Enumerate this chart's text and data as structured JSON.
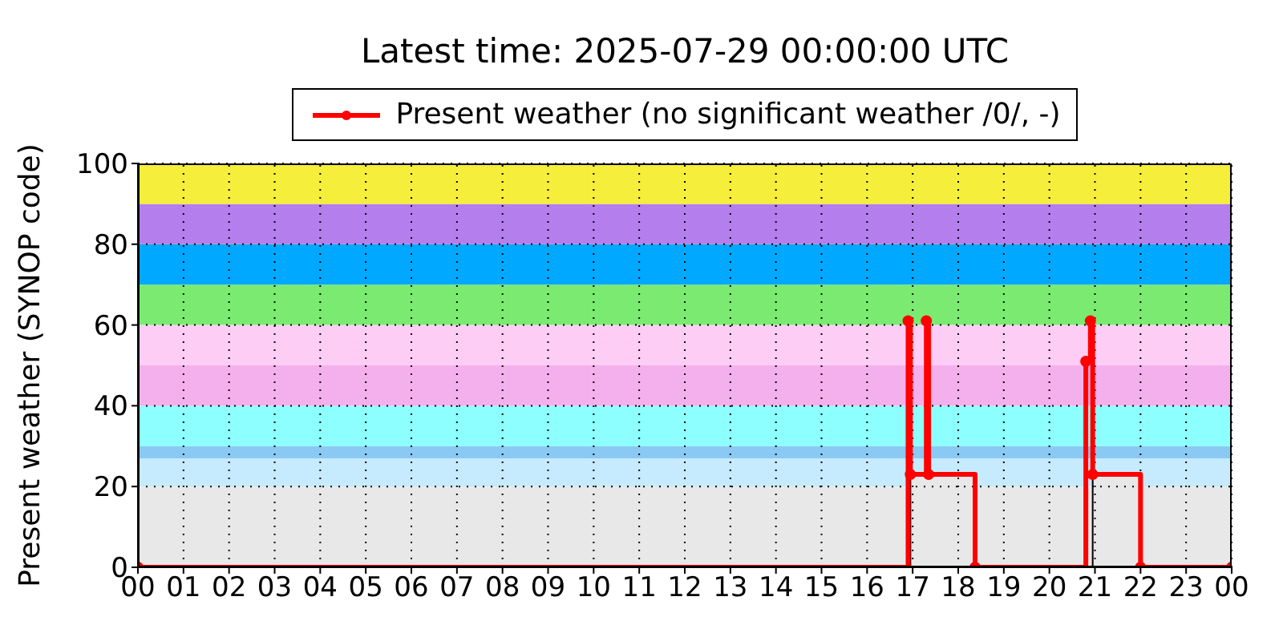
{
  "chart_data": {
    "type": "step",
    "title": "Latest time: 2025-07-29 00:00:00 UTC",
    "ylabel": "Present weather (SYNOP code)",
    "xlim": [
      0,
      24
    ],
    "xticks": [
      {
        "value": 0,
        "label": "00"
      },
      {
        "value": 1,
        "label": "01"
      },
      {
        "value": 2,
        "label": "02"
      },
      {
        "value": 3,
        "label": "03"
      },
      {
        "value": 4,
        "label": "04"
      },
      {
        "value": 5,
        "label": "05"
      },
      {
        "value": 6,
        "label": "06"
      },
      {
        "value": 7,
        "label": "07"
      },
      {
        "value": 8,
        "label": "08"
      },
      {
        "value": 9,
        "label": "09"
      },
      {
        "value": 10,
        "label": "10"
      },
      {
        "value": 11,
        "label": "11"
      },
      {
        "value": 12,
        "label": "12"
      },
      {
        "value": 13,
        "label": "13"
      },
      {
        "value": 14,
        "label": "14"
      },
      {
        "value": 15,
        "label": "15"
      },
      {
        "value": 16,
        "label": "16"
      },
      {
        "value": 17,
        "label": "17"
      },
      {
        "value": 18,
        "label": "18"
      },
      {
        "value": 19,
        "label": "19"
      },
      {
        "value": 20,
        "label": "20"
      },
      {
        "value": 21,
        "label": "21"
      },
      {
        "value": 22,
        "label": "22"
      },
      {
        "value": 23,
        "label": "23"
      },
      {
        "value": 24,
        "label": "00"
      }
    ],
    "ylim": [
      0,
      100
    ],
    "yticks": [
      0,
      20,
      40,
      60,
      80,
      100
    ],
    "grid": true,
    "legend": "top",
    "bands": [
      {
        "axis": "y",
        "from": 0,
        "to": 20,
        "color": "#e8e8e8"
      },
      {
        "axis": "y",
        "from": 20,
        "to": 27,
        "color": "#c6eafe"
      },
      {
        "axis": "y",
        "from": 27,
        "to": 30,
        "color": "#8ac9f4"
      },
      {
        "axis": "y",
        "from": 30,
        "to": 40,
        "color": "#8cfffe"
      },
      {
        "axis": "y",
        "from": 40,
        "to": 50,
        "color": "#f4b0ec"
      },
      {
        "axis": "y",
        "from": 50,
        "to": 60,
        "color": "#fdcdf6"
      },
      {
        "axis": "y",
        "from": 60,
        "to": 70,
        "color": "#7aeb70"
      },
      {
        "axis": "y",
        "from": 70,
        "to": 80,
        "color": "#00a8ff"
      },
      {
        "axis": "y",
        "from": 80,
        "to": 90,
        "color": "#b47fec"
      },
      {
        "axis": "y",
        "from": 90,
        "to": 100,
        "color": "#f5ee3a"
      }
    ],
    "series": [
      {
        "type": "area",
        "color": "#e8e8e8",
        "x": [
          0,
          16.95,
          18.37,
          20.95,
          22.0,
          24
        ],
        "values": [
          0,
          23,
          0,
          23,
          0,
          0
        ]
      },
      {
        "name": "Present weather (no significant weather /0/, -)",
        "color": "#ff0000",
        "marker": "circle",
        "x": [
          0,
          16.9,
          16.95,
          17.3,
          17.35,
          18.37,
          20.8,
          20.9,
          20.95,
          22.0,
          24
        ],
        "values": [
          0,
          61,
          23,
          61,
          23,
          0,
          51,
          61,
          23,
          0,
          0
        ]
      }
    ]
  }
}
